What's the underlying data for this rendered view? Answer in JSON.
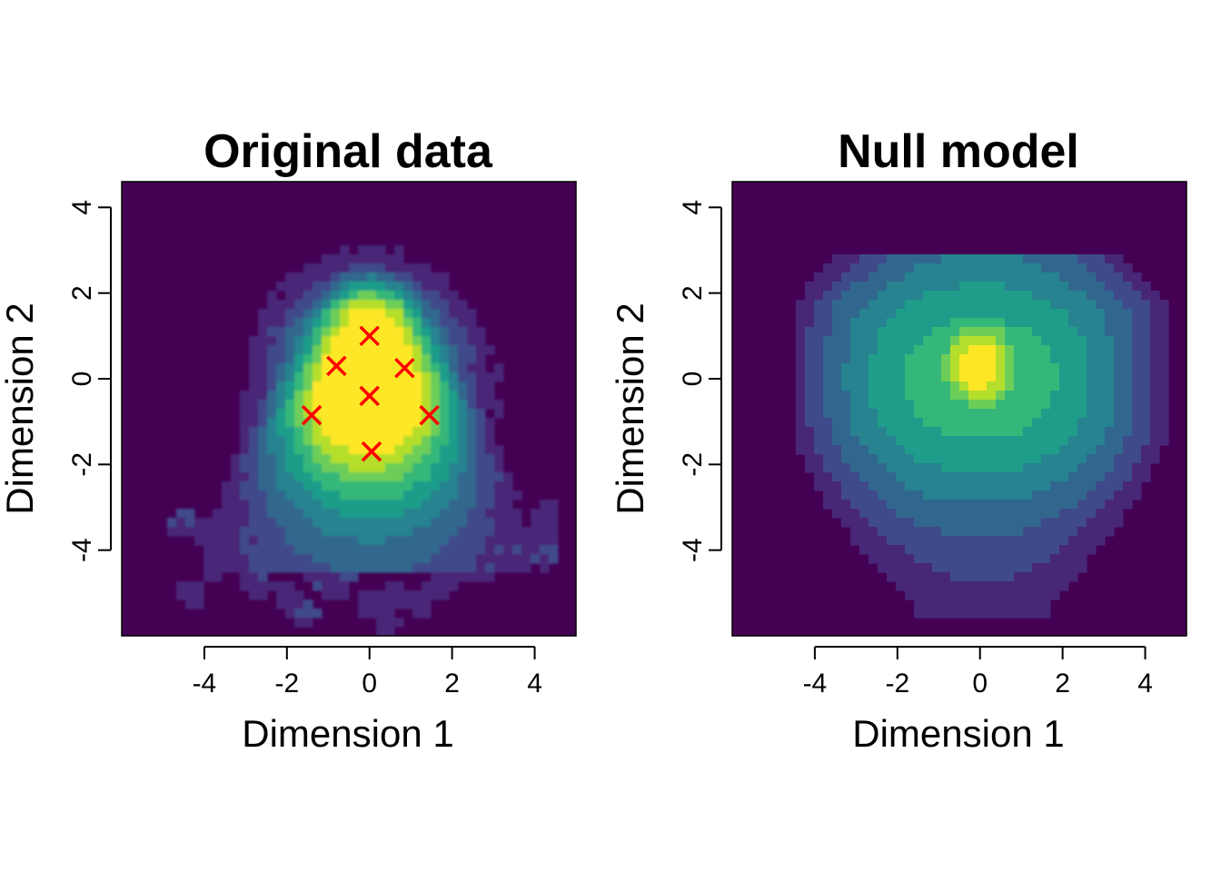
{
  "chart_data": [
    {
      "type": "heatmap",
      "title": "Original data",
      "xlabel": "Dimension 1",
      "ylabel": "Dimension 2",
      "xlim": [
        -6,
        5
      ],
      "ylim": [
        -6,
        4.6
      ],
      "xticks": [
        -4,
        -2,
        0,
        2,
        4
      ],
      "yticks": [
        -4,
        -2,
        0,
        2,
        4
      ],
      "xtick_labels": [
        "-4",
        "-2",
        "0",
        "2",
        "4"
      ],
      "ytick_labels": [
        "-4",
        "-2",
        "0",
        "2",
        "4"
      ],
      "colormap": [
        "#440154",
        "#482777",
        "#3f4a8a",
        "#31678e",
        "#26838f",
        "#1f9d8a",
        "#35b779",
        "#6cce59",
        "#b4de2c",
        "#fde725"
      ],
      "background": "#440154",
      "grid": false,
      "legend": "none",
      "density_description": "triangular kernel density peaked near (0, 0.4), sparse blobs below y = -3",
      "markers": {
        "symbol": "x",
        "color": "#ff0000",
        "points": [
          {
            "x": 0.0,
            "y": 1.0
          },
          {
            "x": -0.8,
            "y": 0.3
          },
          {
            "x": 0.85,
            "y": 0.25
          },
          {
            "x": 0.0,
            "y": -0.4
          },
          {
            "x": -1.4,
            "y": -0.85
          },
          {
            "x": 1.45,
            "y": -0.85
          },
          {
            "x": 0.05,
            "y": -1.7
          }
        ]
      }
    },
    {
      "type": "heatmap",
      "title": "Null model",
      "xlabel": "Dimension 1",
      "ylabel": "Dimension 2",
      "xlim": [
        -6,
        5
      ],
      "ylim": [
        -6,
        4.6
      ],
      "xticks": [
        -4,
        -2,
        0,
        2,
        4
      ],
      "yticks": [
        -4,
        -2,
        0,
        2,
        4
      ],
      "xtick_labels": [
        "-4",
        "-2",
        "0",
        "2",
        "4"
      ],
      "ytick_labels": [
        "-4",
        "-2",
        "0",
        "2",
        "4"
      ],
      "colormap": [
        "#440154",
        "#482777",
        "#3f4a8a",
        "#31678e",
        "#26838f",
        "#1f9d8a",
        "#35b779",
        "#6cce59",
        "#b4de2c",
        "#fde725"
      ],
      "background": "#440154",
      "grid": false,
      "legend": "none",
      "density_description": "smooth cup-shaped density peaked near (0, 0.3), spanning x from -4.5 to 4.5 and y from -5.5 to 2.9"
    }
  ]
}
